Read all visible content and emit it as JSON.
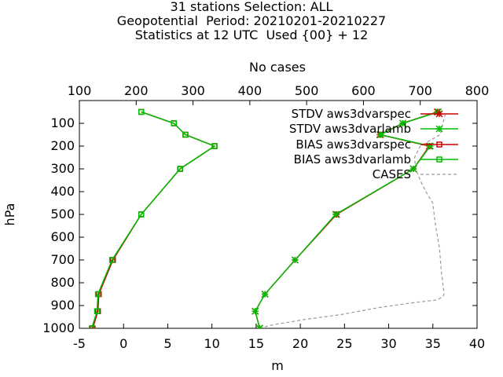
{
  "title_lines": [
    "31 stations Selection: ALL",
    "Geopotential  Period: 20210201-20210227",
    "Statistics at 12 UTC  Used {00} + 12"
  ],
  "chart_data": {
    "type": "line",
    "xlabel": "m",
    "ylabel": "hPa",
    "x2label": "No cases",
    "xlim": [
      -5,
      40
    ],
    "xticks": [
      -5,
      0,
      5,
      10,
      15,
      20,
      25,
      30,
      35,
      40
    ],
    "x2lim": [
      100,
      800
    ],
    "x2ticks": [
      100,
      200,
      300,
      400,
      500,
      600,
      700,
      800
    ],
    "ylim": [
      1000,
      0
    ],
    "yticks": [
      100,
      200,
      300,
      400,
      500,
      600,
      700,
      800,
      900,
      1000
    ],
    "legend_position": "top-right",
    "series": [
      {
        "name": "STDV aws3dvarspec",
        "color": "#cc0000",
        "marker": "star",
        "axis": "x",
        "points": [
          [
            15.4,
            1000
          ],
          [
            14.9,
            925
          ],
          [
            16.0,
            850
          ],
          [
            19.4,
            700
          ],
          [
            24.1,
            500
          ],
          [
            32.8,
            300
          ],
          [
            34.6,
            200
          ],
          [
            29.0,
            150
          ],
          [
            31.6,
            100
          ],
          [
            35.5,
            50
          ]
        ]
      },
      {
        "name": "STDV aws3dvarlamb",
        "color": "#00bb00",
        "marker": "star",
        "axis": "x",
        "points": [
          [
            15.4,
            1000
          ],
          [
            14.9,
            925
          ],
          [
            16.0,
            850
          ],
          [
            19.4,
            700
          ],
          [
            24.0,
            500
          ],
          [
            32.8,
            300
          ],
          [
            34.7,
            200
          ],
          [
            29.1,
            150
          ],
          [
            31.6,
            100
          ],
          [
            35.6,
            50
          ]
        ]
      },
      {
        "name": "BIAS aws3dvarspec",
        "color": "#cc0000",
        "marker": "square",
        "axis": "x",
        "points": [
          [
            -3.5,
            1000
          ],
          [
            -2.9,
            925
          ],
          [
            -2.8,
            850
          ],
          [
            -1.2,
            700
          ],
          [
            2.0,
            500
          ],
          [
            6.4,
            300
          ],
          [
            10.3,
            200
          ],
          [
            7.0,
            150
          ],
          [
            5.7,
            100
          ],
          [
            2.0,
            50
          ]
        ]
      },
      {
        "name": "BIAS aws3dvarlamb",
        "color": "#00bb00",
        "marker": "square",
        "axis": "x",
        "points": [
          [
            -3.6,
            1000
          ],
          [
            -3.0,
            925
          ],
          [
            -2.9,
            850
          ],
          [
            -1.3,
            700
          ],
          [
            2.0,
            500
          ],
          [
            6.4,
            300
          ],
          [
            10.3,
            200
          ],
          [
            7.0,
            150
          ],
          [
            5.7,
            100
          ],
          [
            2.0,
            50
          ]
        ]
      },
      {
        "name": "CASES",
        "color": "#999999",
        "marker": "none",
        "dash": true,
        "axis": "x2",
        "points": [
          [
            417,
            1000
          ],
          [
            440,
            985
          ],
          [
            500,
            960
          ],
          [
            560,
            940
          ],
          [
            625,
            910
          ],
          [
            680,
            890
          ],
          [
            730,
            875
          ],
          [
            740,
            860
          ],
          [
            742,
            850
          ],
          [
            737,
            750
          ],
          [
            734,
            650
          ],
          [
            727,
            550
          ],
          [
            722,
            450
          ],
          [
            710,
            400
          ],
          [
            700,
            350
          ],
          [
            692,
            300
          ],
          [
            690,
            250
          ],
          [
            700,
            200
          ],
          [
            735,
            150
          ],
          [
            740,
            100
          ],
          [
            745,
            50
          ]
        ]
      }
    ]
  }
}
